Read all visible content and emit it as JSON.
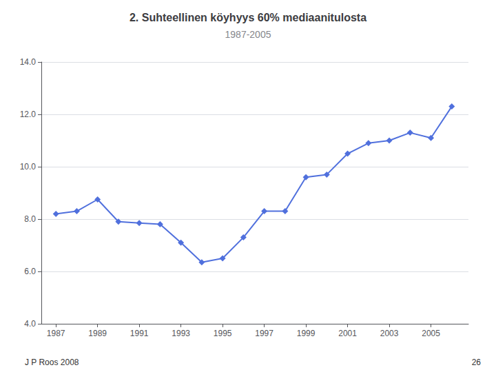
{
  "chart_data": {
    "type": "line",
    "title": "2. Suhteellinen köyhyys 60% mediaanitulosta",
    "subtitle": "1987-2005",
    "annotations": [
      "J P Roos 2008",
      "26"
    ],
    "x": [
      1987,
      1988,
      1989,
      1990,
      1991,
      1992,
      1993,
      1994,
      1995,
      1996,
      1997,
      1998,
      1999,
      2000,
      2001,
      2002,
      2003,
      2004,
      2005,
      2006
    ],
    "values": [
      8.2,
      8.3,
      8.75,
      7.9,
      7.85,
      7.8,
      7.1,
      6.35,
      6.5,
      7.3,
      8.3,
      8.3,
      9.6,
      9.7,
      10.5,
      10.9,
      11.0,
      11.3,
      11.1,
      12.3
    ],
    "marker": "diamond",
    "xlim": [
      1986.3,
      2006.8
    ],
    "xticks": [
      1987,
      1989,
      1991,
      1993,
      1995,
      1997,
      1999,
      2001,
      2003,
      2005
    ],
    "ylim": [
      4.0,
      14.0
    ],
    "yticks": [
      {
        "value": 4.0,
        "label": "4.0"
      },
      {
        "value": 6.0,
        "label": "6.0"
      },
      {
        "value": 8.0,
        "label": "8.0"
      },
      {
        "value": 10.0,
        "label": "10.0"
      },
      {
        "value": 12.0,
        "label": "12.0"
      },
      {
        "value": 14.0,
        "label": "14.0"
      }
    ],
    "grid": true
  }
}
